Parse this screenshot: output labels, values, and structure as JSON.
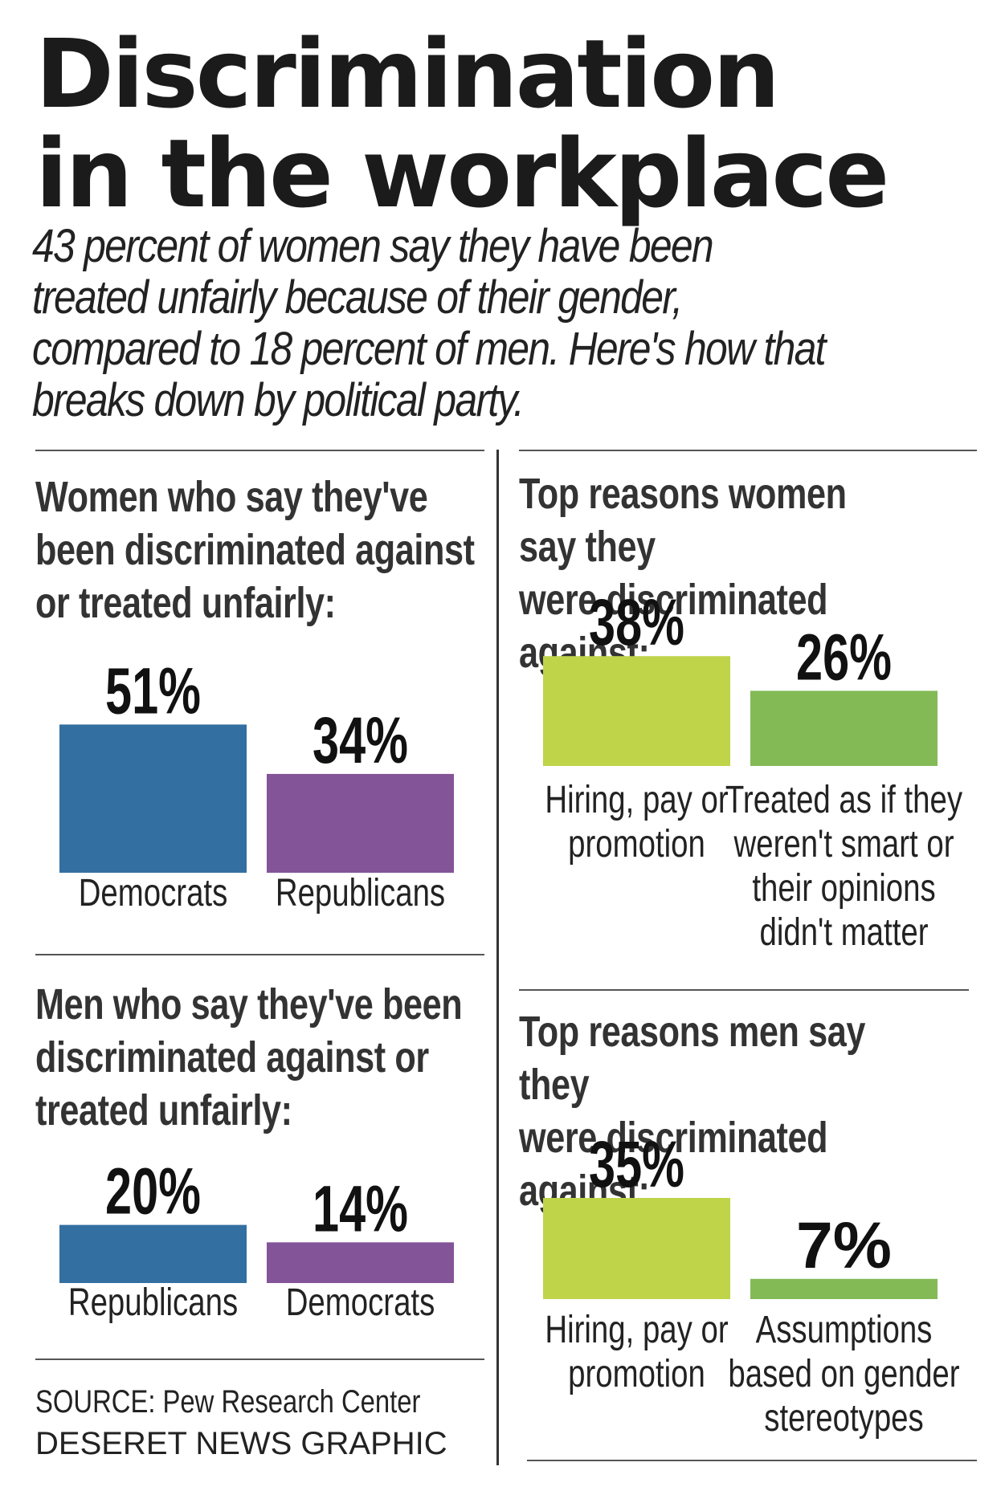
{
  "header": {
    "title_line1": "Discrimination",
    "title_line2": "in the workplace",
    "subtitle": "43 percent of women say they have been treated unfairly because of their gender, compared to 18 percent of men. Here's how that breaks down by political party."
  },
  "footer": {
    "source": "SOURCE: Pew Research Center",
    "credit": "DESERET NEWS GRAPHIC"
  },
  "colors": {
    "democrat_blue": "#336fa0",
    "republican_purple": "#835498",
    "lime_green": "#c0d44a",
    "green": "#83ba56"
  },
  "chart_data": [
    {
      "type": "bar",
      "id": "women-party",
      "title": "Women who say they've been discriminated against or treated unfairly:",
      "title_lines": [
        "Women who say they've",
        "been discriminated against",
        "or treated unfairly:"
      ],
      "categories": [
        "Democrats",
        "Republicans"
      ],
      "category_lines": [
        [
          "Democrats"
        ],
        [
          "Republicans"
        ]
      ],
      "values": [
        51,
        34
      ],
      "labels": [
        "51%",
        "34%"
      ],
      "colors": [
        "#336fa0",
        "#835498"
      ]
    },
    {
      "type": "bar",
      "id": "men-party",
      "title": "Men who say they've been discriminated against or treated unfairly:",
      "title_lines": [
        "Men who say they've been",
        "discriminated against or",
        "treated unfairly:"
      ],
      "categories": [
        "Republicans",
        "Democrats"
      ],
      "category_lines": [
        [
          "Republicans"
        ],
        [
          "Democrats"
        ]
      ],
      "values": [
        20,
        14
      ],
      "labels": [
        "20%",
        "14%"
      ],
      "colors": [
        "#336fa0",
        "#835498"
      ]
    },
    {
      "type": "bar",
      "id": "women-reasons",
      "title": "Top reasons women say they were discriminated against:",
      "title_lines": [
        "Top reasons women say they",
        "were discriminated against:"
      ],
      "categories": [
        "Hiring, pay or promotion",
        "Treated as if they weren't smart or their opinions didn't matter"
      ],
      "category_lines": [
        [
          "Hiring, pay or",
          "promotion"
        ],
        [
          "Treated as if they",
          "weren't smart or",
          "their opinions",
          "didn't matter"
        ]
      ],
      "values": [
        38,
        26
      ],
      "labels": [
        "38%",
        "26%"
      ],
      "colors": [
        "#c0d44a",
        "#83ba56"
      ]
    },
    {
      "type": "bar",
      "id": "men-reasons",
      "title": "Top reasons men say they were discriminated against:",
      "title_lines": [
        "Top reasons men say they",
        "were discriminated against:"
      ],
      "categories": [
        "Hiring, pay or promotion",
        "Assumptions based on gender stereotypes"
      ],
      "category_lines": [
        [
          "Hiring, pay or",
          "promotion"
        ],
        [
          "Assumptions",
          "based on gender",
          "stereotypes"
        ]
      ],
      "values": [
        35,
        7
      ],
      "labels": [
        "35%",
        "7%"
      ],
      "colors": [
        "#c0d44a",
        "#83ba56"
      ]
    }
  ]
}
